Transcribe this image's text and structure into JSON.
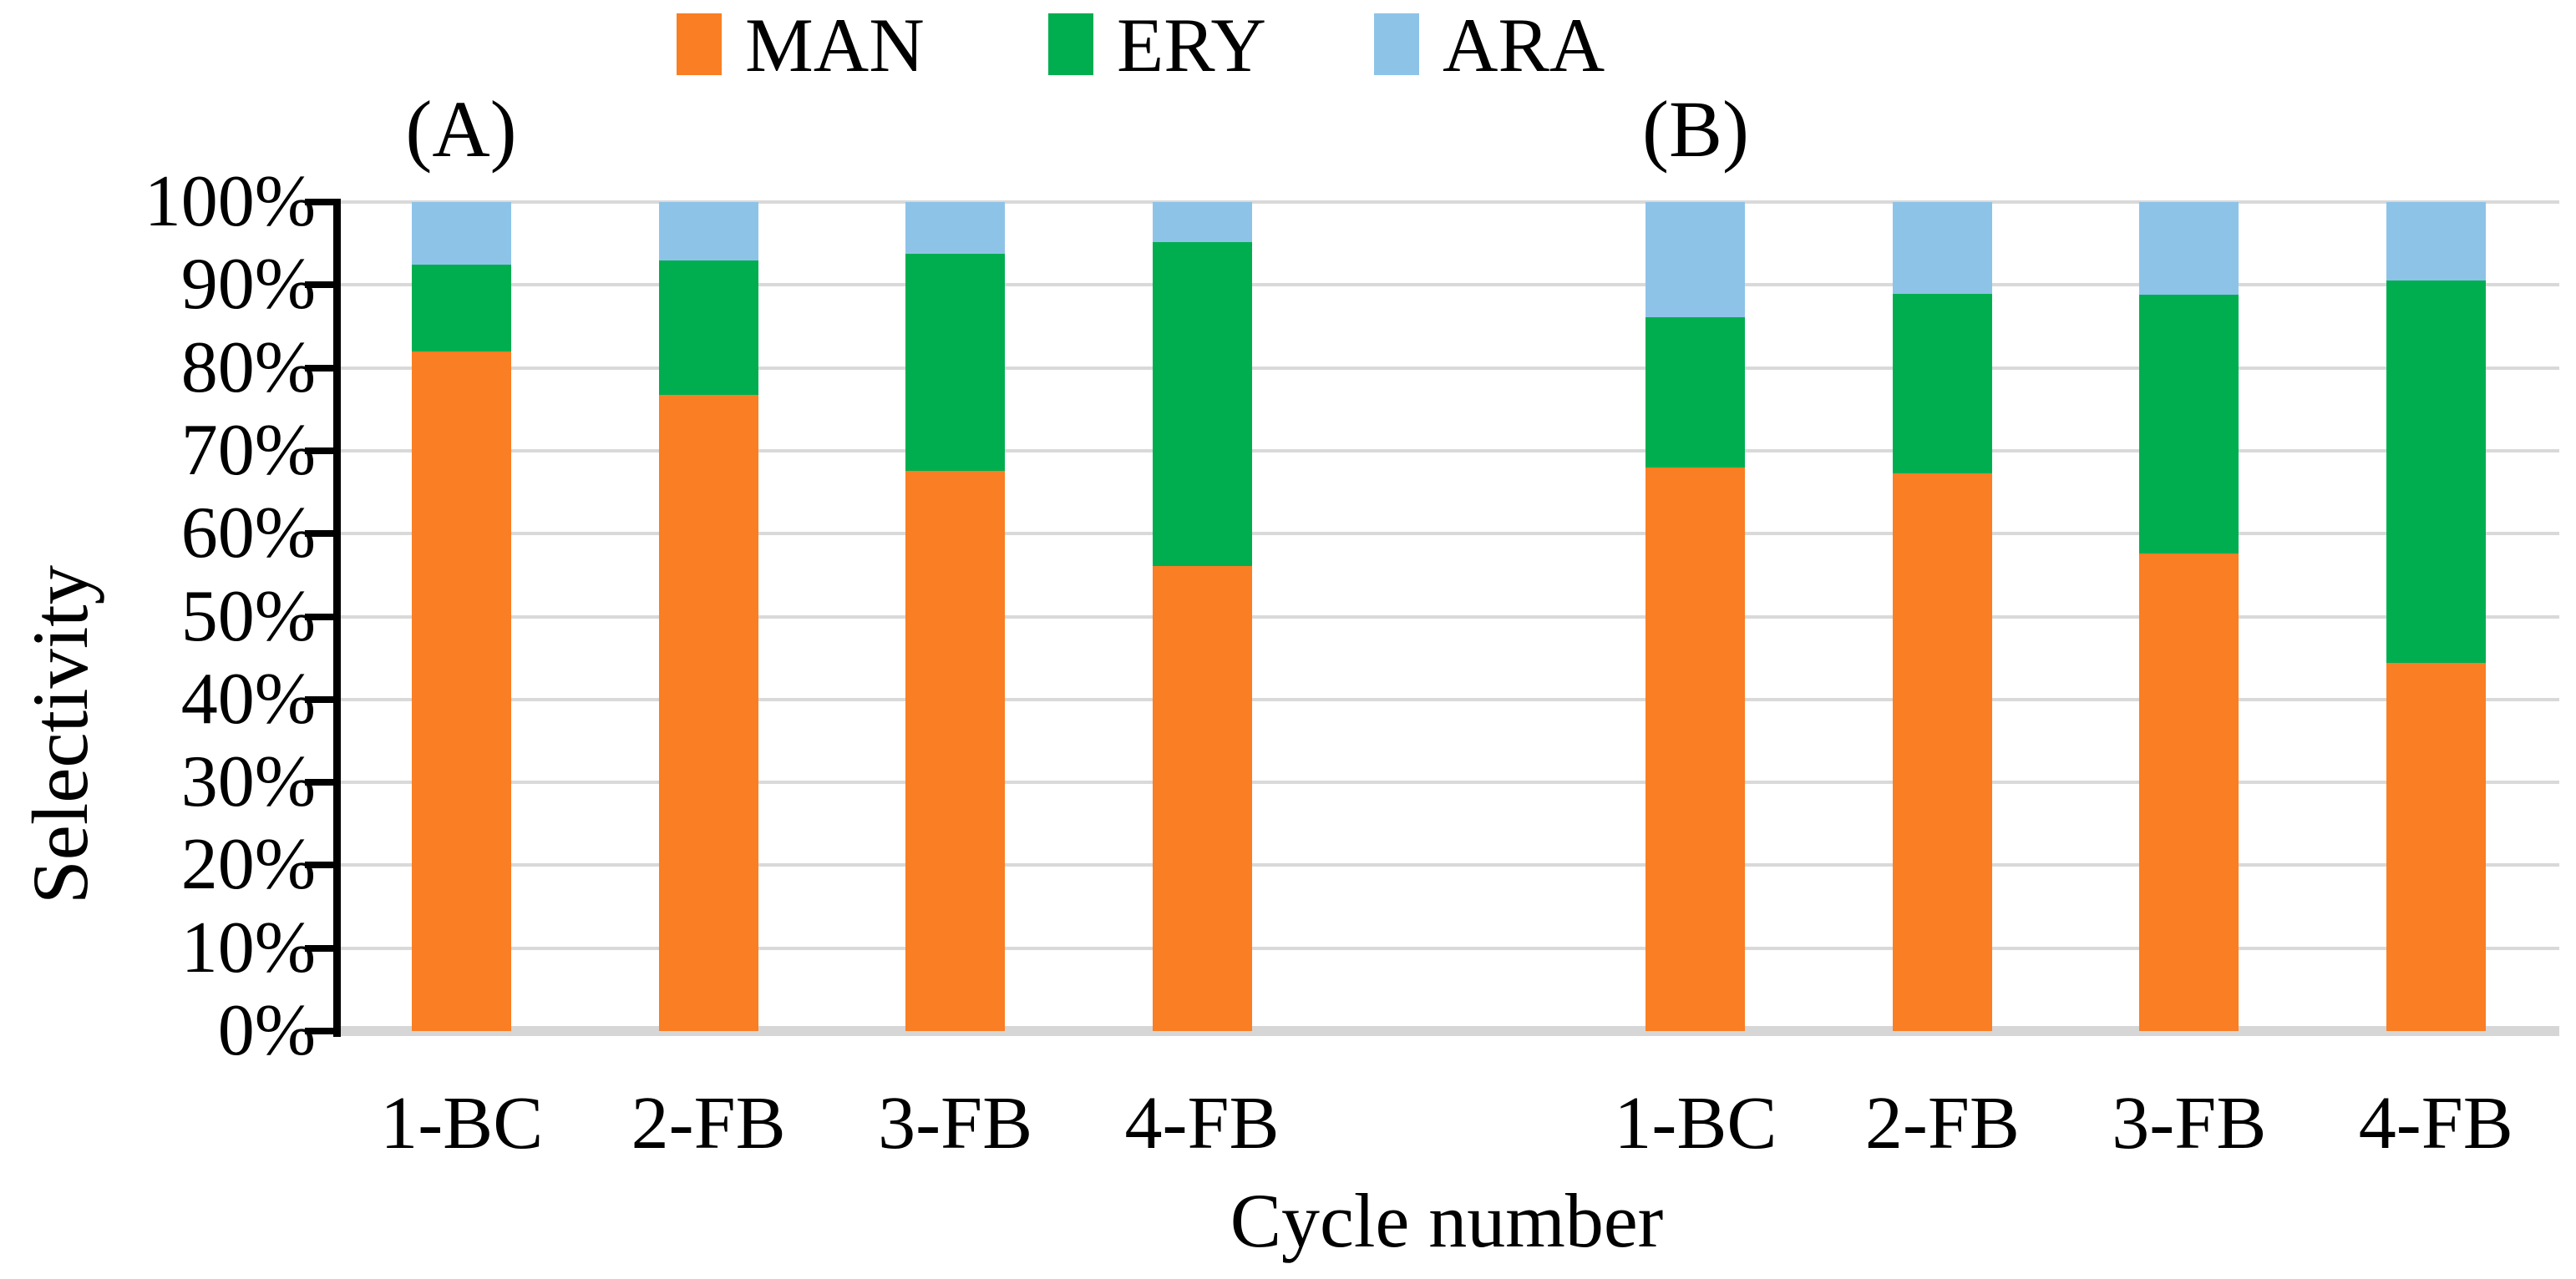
{
  "chart_data": {
    "type": "bar",
    "stacked": true,
    "value_format": "percent",
    "title": "",
    "ylabel": "Selectivity",
    "xlabel": "Cycle number",
    "ylim": [
      0,
      100
    ],
    "ytick_step": 10,
    "ytick_labels": [
      "100%",
      "90%",
      "80%",
      "70%",
      "60%",
      "50%",
      "40%",
      "30%",
      "20%",
      "10%",
      "0%"
    ],
    "grid": true,
    "legend_position": "top",
    "legend": [
      "MAN",
      "ERY",
      "ARA"
    ],
    "series_colors": {
      "MAN": "#FA7E23",
      "ERY": "#00AE50",
      "ARA": "#8EC3E8"
    },
    "panels": [
      {
        "label": "(A)",
        "categories": [
          "1-BC",
          "2-FB",
          "3-FB",
          "4-FB"
        ],
        "series": [
          {
            "name": "MAN",
            "values": [
              82.0,
              76.7,
              67.6,
              56.1
            ]
          },
          {
            "name": "ERY",
            "values": [
              10.4,
              16.3,
              26.2,
              39.1
            ]
          },
          {
            "name": "ARA",
            "values": [
              7.6,
              7.0,
              6.2,
              4.8
            ]
          }
        ]
      },
      {
        "label": "(B)",
        "categories": [
          "1-BC",
          "2-FB",
          "3-FB",
          "4-FB"
        ],
        "series": [
          {
            "name": "MAN",
            "values": [
              68.0,
              67.3,
              57.6,
              44.4
            ]
          },
          {
            "name": "ERY",
            "values": [
              18.1,
              21.6,
              31.2,
              46.1
            ]
          },
          {
            "name": "ARA",
            "values": [
              13.9,
              11.1,
              11.2,
              9.5
            ]
          }
        ]
      }
    ]
  }
}
